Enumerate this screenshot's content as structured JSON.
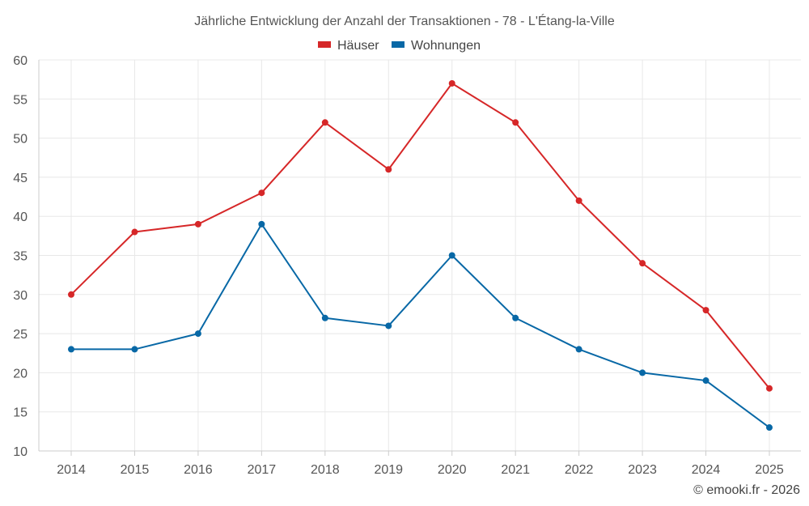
{
  "chart_data": {
    "type": "line",
    "title": "Jährliche Entwicklung der Anzahl der Transaktionen - 78 - L'Étang-la-Ville",
    "categories": [
      "2014",
      "2015",
      "2016",
      "2017",
      "2018",
      "2019",
      "2020",
      "2021",
      "2022",
      "2023",
      "2024",
      "2025"
    ],
    "series": [
      {
        "name": "Häuser",
        "color": "#d62728",
        "values": [
          30,
          38,
          39,
          43,
          52,
          46,
          57,
          52,
          42,
          34,
          28,
          18
        ]
      },
      {
        "name": "Wohnungen",
        "color": "#0868a6",
        "values": [
          23,
          23,
          25,
          39,
          27,
          26,
          35,
          27,
          23,
          20,
          19,
          13
        ]
      }
    ],
    "ylim": [
      10,
      60
    ],
    "yticks": [
      10,
      15,
      20,
      25,
      30,
      35,
      40,
      45,
      50,
      55,
      60
    ],
    "grid": true,
    "legend_position": "top-center",
    "xlabel": "",
    "ylabel": ""
  },
  "credit": "© emooki.fr - 2026"
}
